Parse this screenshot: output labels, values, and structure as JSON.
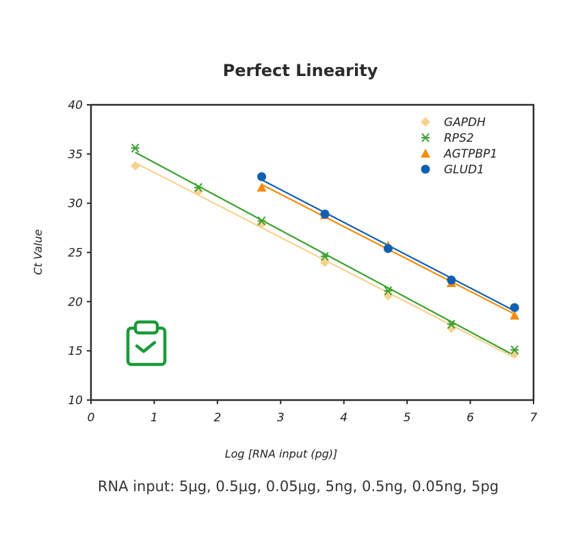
{
  "chart_data": {
    "type": "scatter",
    "title": "Perfect Linearity",
    "xlabel": "Log [RNA input (pg)]",
    "ylabel": "Ct  Value",
    "xlim": [
      0,
      7
    ],
    "ylim": [
      10,
      40
    ],
    "xticks": [
      0,
      1,
      2,
      3,
      4,
      5,
      6,
      7
    ],
    "yticks": [
      10,
      15,
      20,
      25,
      30,
      35,
      40
    ],
    "grid": false,
    "legend_placement": "top-right",
    "trendlines": true,
    "series": [
      {
        "name": "GAPDH",
        "marker": "diamond",
        "color": "#f7d28f",
        "x": [
          0.7,
          1.7,
          2.7,
          3.7,
          4.7,
          5.7,
          6.7
        ],
        "y": [
          33.8,
          31.2,
          27.9,
          24.0,
          20.6,
          17.3,
          14.7
        ]
      },
      {
        "name": "RPS2",
        "marker": "asterisk",
        "color": "#3aa02e",
        "x": [
          0.7,
          1.7,
          2.7,
          3.7,
          4.7,
          5.7,
          6.7
        ],
        "y": [
          35.6,
          31.6,
          28.2,
          24.6,
          21.1,
          17.7,
          15.1
        ]
      },
      {
        "name": "AGTPBP1",
        "marker": "triangle",
        "color": "#f58b0a",
        "x": [
          2.7,
          3.7,
          4.7,
          5.7,
          6.7
        ],
        "y": [
          31.6,
          28.8,
          25.7,
          21.9,
          18.6
        ]
      },
      {
        "name": "GLUD1",
        "marker": "circle",
        "color": "#1160b0",
        "x": [
          2.7,
          3.7,
          4.7,
          5.7,
          6.7
        ],
        "y": [
          32.7,
          28.9,
          25.4,
          22.2,
          19.4
        ]
      }
    ]
  },
  "icon": {
    "name": "clipboard-check-icon",
    "color": "#1a9a3a"
  },
  "footer": "RNA input:  5μg, 0.5μg, 0.05μg, 5ng, 0.5ng, 0.05ng, 5pg"
}
